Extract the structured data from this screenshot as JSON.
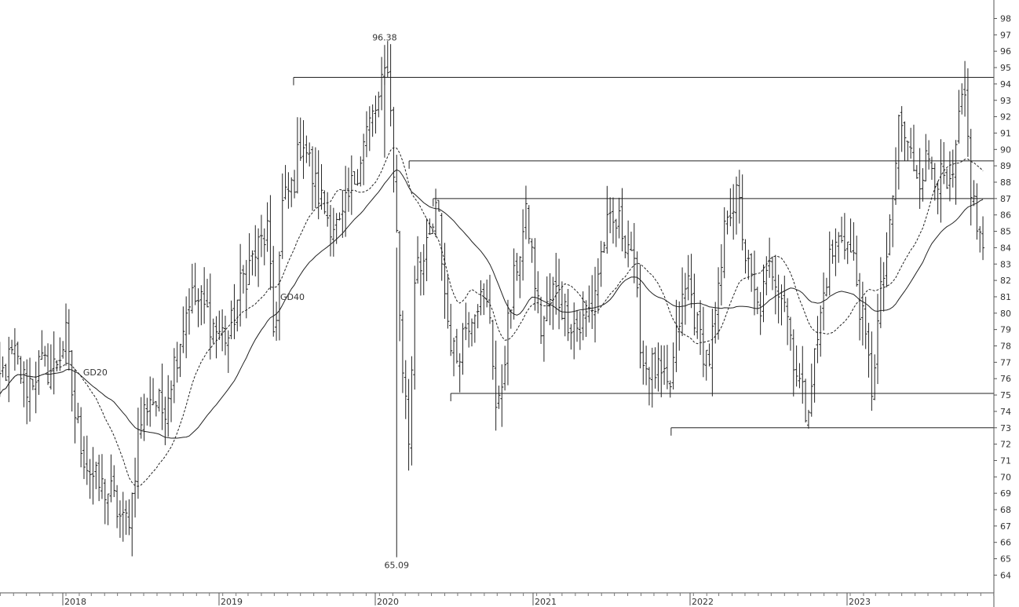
{
  "chart_data": {
    "type": "ohlc-bar",
    "title": "",
    "xlabel": "",
    "ylabel": "",
    "x_axis": {
      "years": [
        "2018",
        "2019",
        "2020",
        "2021",
        "2022",
        "2023"
      ],
      "range": [
        "2017-07-01",
        "2023-12-20"
      ]
    },
    "y_axis": {
      "min": 63,
      "max": 99,
      "ticks": [
        64,
        65,
        66,
        67,
        68,
        69,
        70,
        71,
        72,
        73,
        74,
        75,
        76,
        77,
        78,
        79,
        80,
        81,
        82,
        83,
        84,
        85,
        86,
        87,
        88,
        89,
        90,
        91,
        92,
        93,
        94,
        95,
        96,
        97,
        98
      ]
    },
    "grid": false,
    "annotations": [
      {
        "text": "96.38",
        "x": "2020-01-13",
        "y": 96.38,
        "position": "above"
      },
      {
        "text": "65.09",
        "x": "2020-02-10",
        "y": 65.09,
        "position": "below"
      }
    ],
    "moving_average_labels": [
      {
        "text": "GD20",
        "x": "2018-02-10",
        "y": 76.2
      },
      {
        "text": "GD40",
        "x": "2019-05-15",
        "y": 80.8
      }
    ],
    "horizontal_lines": [
      {
        "start": "2019-06-15",
        "y": 94.4
      },
      {
        "start": "2020-03-10",
        "y": 89.3
      },
      {
        "start": "2020-05-05",
        "y": 87.0
      },
      {
        "start": "2020-06-15",
        "y": 75.1
      },
      {
        "start": "2021-11-10",
        "y": 73.0
      }
    ],
    "price_anchors": [
      [
        "2017-07-03",
        73.5
      ],
      [
        "2017-08-01",
        76.0
      ],
      [
        "2017-09-01",
        77.5
      ],
      [
        "2017-10-01",
        75.5
      ],
      [
        "2017-11-01",
        76.8
      ],
      [
        "2017-12-01",
        76.5
      ],
      [
        "2018-01-01",
        78.5
      ],
      [
        "2018-01-20",
        74.0
      ],
      [
        "2018-02-15",
        71.0
      ],
      [
        "2018-03-15",
        69.5
      ],
      [
        "2018-04-15",
        69.0
      ],
      [
        "2018-05-15",
        67.0
      ],
      [
        "2018-06-01",
        68.0
      ],
      [
        "2018-06-20",
        73.0
      ],
      [
        "2018-07-15",
        75.0
      ],
      [
        "2018-08-15",
        74.0
      ],
      [
        "2018-09-15",
        77.5
      ],
      [
        "2018-10-15",
        81.0
      ],
      [
        "2018-11-15",
        80.5
      ],
      [
        "2018-12-15",
        79.0
      ],
      [
        "2019-01-15",
        78.5
      ],
      [
        "2019-02-15",
        82.0
      ],
      [
        "2019-03-15",
        83.5
      ],
      [
        "2019-04-15",
        85.0
      ],
      [
        "2019-05-01",
        78.0
      ],
      [
        "2019-05-20",
        86.5
      ],
      [
        "2019-06-15",
        88.0
      ],
      [
        "2019-07-05",
        91.0
      ],
      [
        "2019-08-01",
        88.0
      ],
      [
        "2019-09-01",
        86.0
      ],
      [
        "2019-10-01",
        85.0
      ],
      [
        "2019-11-01",
        88.0
      ],
      [
        "2019-12-01",
        91.0
      ],
      [
        "2020-01-01",
        93.0
      ],
      [
        "2020-01-20",
        95.5
      ],
      [
        "2020-02-05",
        88.0
      ],
      [
        "2020-02-20",
        78.0
      ],
      [
        "2020-03-10",
        72.0
      ],
      [
        "2020-03-25",
        84.0
      ],
      [
        "2020-04-15",
        83.0
      ],
      [
        "2020-05-15",
        86.5
      ],
      [
        "2020-06-05",
        80.0
      ],
      [
        "2020-06-25",
        77.0
      ],
      [
        "2020-07-15",
        79.0
      ],
      [
        "2020-08-15",
        81.0
      ],
      [
        "2020-09-15",
        80.0
      ],
      [
        "2020-10-01",
        73.0
      ],
      [
        "2020-10-20",
        78.0
      ],
      [
        "2020-11-15",
        83.0
      ],
      [
        "2020-12-10",
        86.0
      ],
      [
        "2021-01-10",
        79.0
      ],
      [
        "2021-02-10",
        81.5
      ],
      [
        "2021-03-10",
        80.0
      ],
      [
        "2021-04-10",
        79.0
      ],
      [
        "2021-05-10",
        80.5
      ],
      [
        "2021-06-10",
        85.0
      ],
      [
        "2021-07-10",
        85.5
      ],
      [
        "2021-08-10",
        84.0
      ],
      [
        "2021-09-05",
        77.0
      ],
      [
        "2021-10-05",
        76.5
      ],
      [
        "2021-11-05",
        75.0
      ],
      [
        "2021-12-01",
        80.0
      ],
      [
        "2021-12-20",
        82.0
      ],
      [
        "2022-01-10",
        79.0
      ],
      [
        "2022-02-05",
        77.0
      ],
      [
        "2022-03-01",
        81.0
      ],
      [
        "2022-03-20",
        86.5
      ],
      [
        "2022-04-15",
        87.0
      ],
      [
        "2022-05-05",
        83.0
      ],
      [
        "2022-06-01",
        80.0
      ],
      [
        "2022-07-01",
        83.0
      ],
      [
        "2022-08-01",
        81.0
      ],
      [
        "2022-08-25",
        77.0
      ],
      [
        "2022-09-20",
        74.0
      ],
      [
        "2022-10-15",
        78.0
      ],
      [
        "2022-11-10",
        83.0
      ],
      [
        "2022-12-15",
        85.0
      ],
      [
        "2023-01-10",
        83.0
      ],
      [
        "2023-02-01",
        79.0
      ],
      [
        "2023-02-20",
        75.5
      ],
      [
        "2023-03-15",
        81.5
      ],
      [
        "2023-04-05",
        85.0
      ],
      [
        "2023-04-25",
        92.0
      ],
      [
        "2023-05-15",
        90.0
      ],
      [
        "2023-06-10",
        88.5
      ],
      [
        "2023-07-05",
        89.5
      ],
      [
        "2023-08-01",
        88.0
      ],
      [
        "2023-08-25",
        87.0
      ],
      [
        "2023-09-10",
        91.5
      ],
      [
        "2023-09-25",
        93.0
      ],
      [
        "2023-10-10",
        87.5
      ],
      [
        "2023-10-25",
        85.0
      ],
      [
        "2023-11-12",
        83.5
      ]
    ],
    "spike_bars": [
      {
        "x": "2020-01-13",
        "low": 89.5,
        "high": 96.38
      },
      {
        "x": "2020-02-10",
        "low": 65.09,
        "high": 84.0
      }
    ],
    "series": [
      {
        "name": "GD20",
        "style": "dashed"
      },
      {
        "name": "GD40",
        "style": "solid"
      }
    ]
  }
}
